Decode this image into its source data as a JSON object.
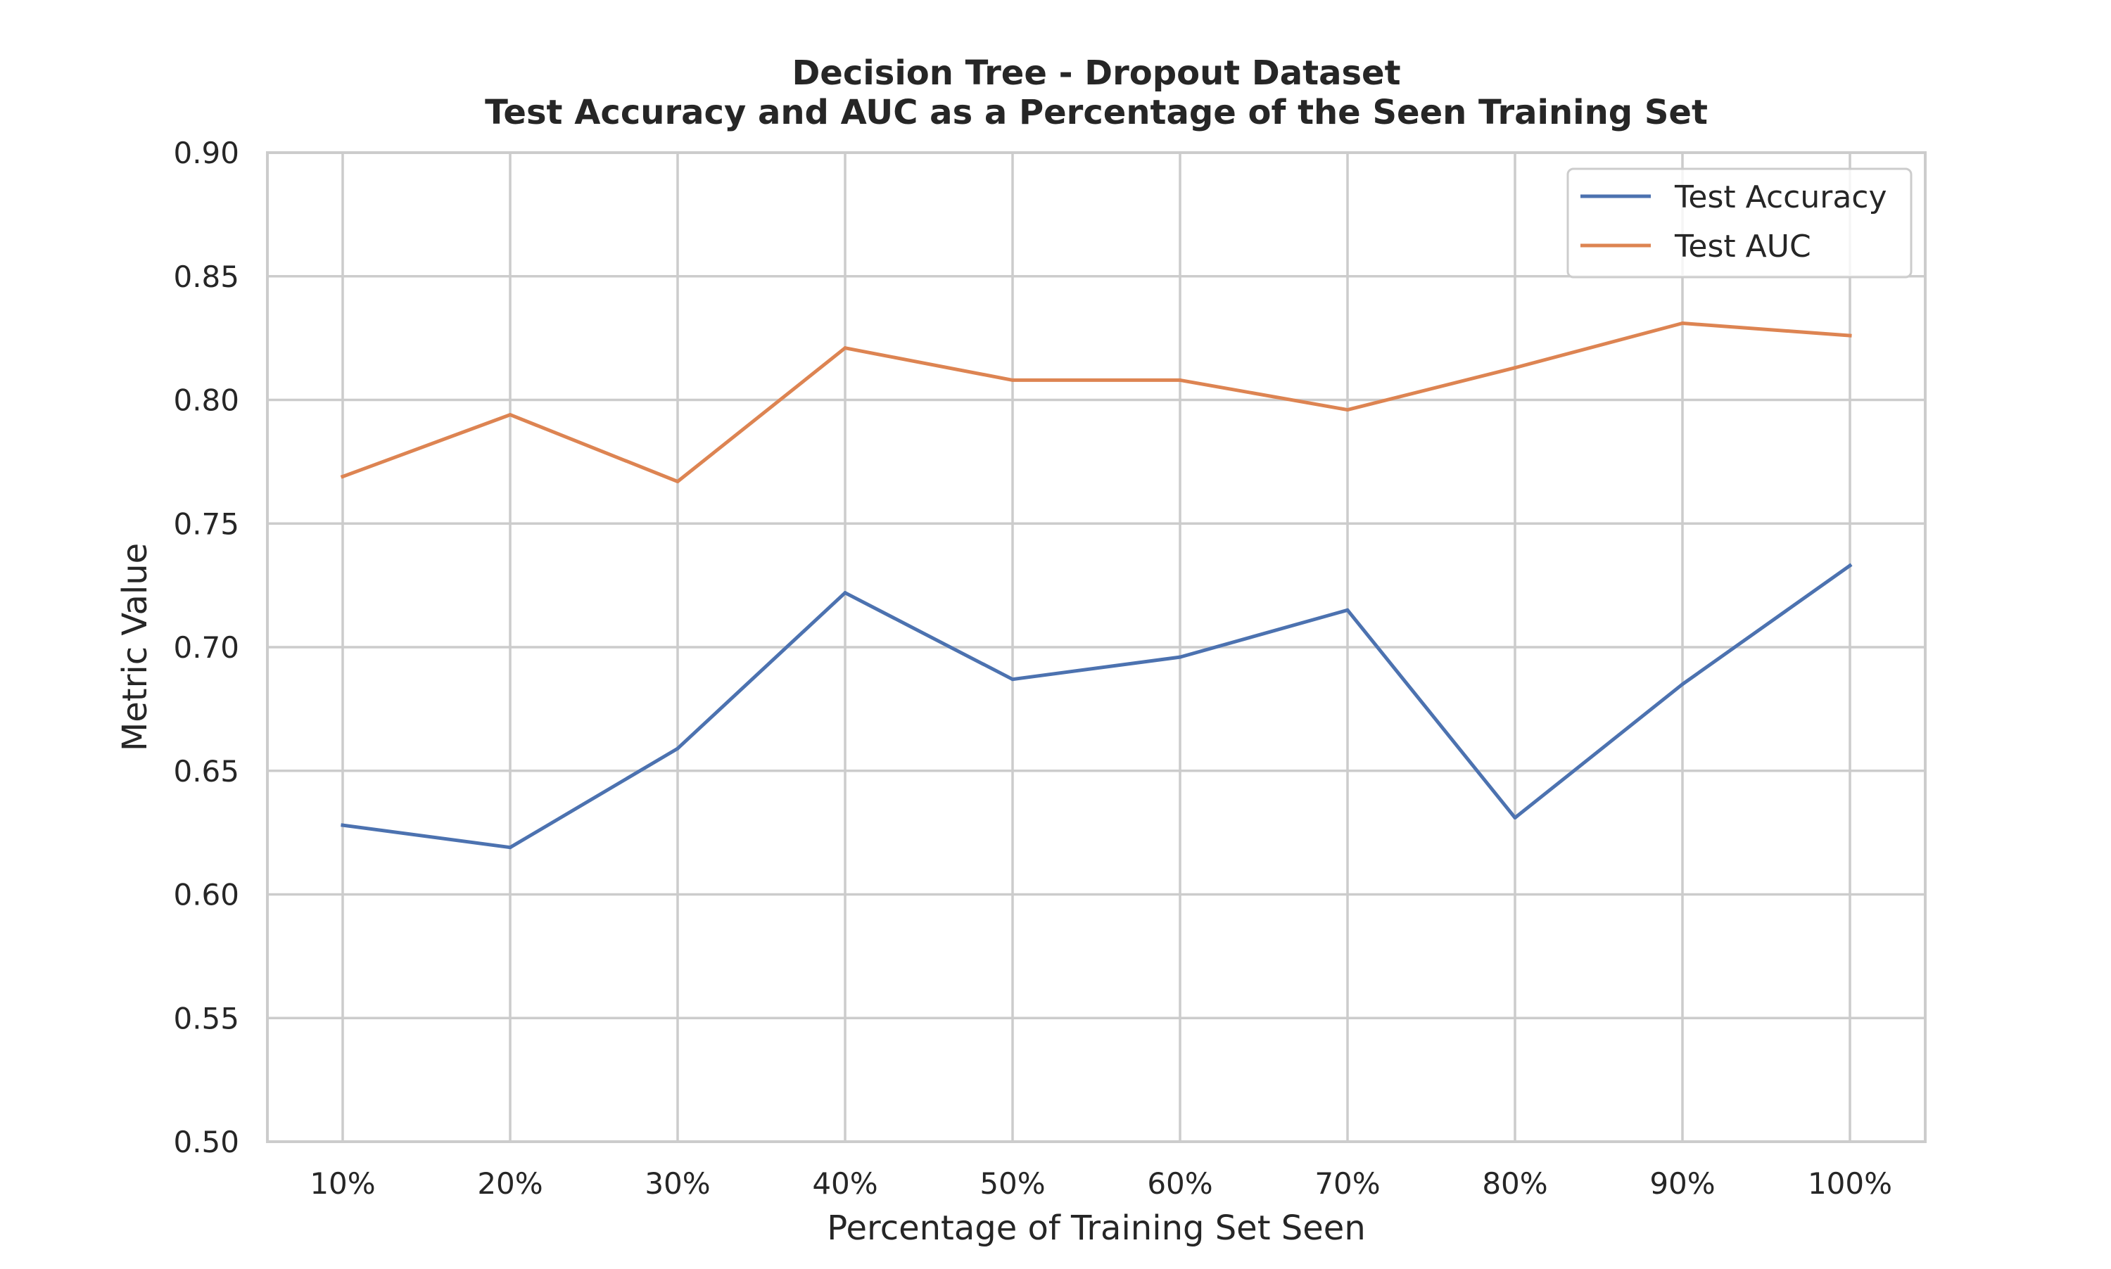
{
  "chart_data": {
    "type": "line",
    "title": "Decision Tree - Dropout Dataset",
    "subtitle": "Test Accuracy and AUC as a Percentage of the Seen Training Set",
    "xlabel": "Percentage of Training Set Seen",
    "ylabel": "Metric Value",
    "categories": [
      "10%",
      "20%",
      "30%",
      "40%",
      "50%",
      "60%",
      "70%",
      "80%",
      "90%",
      "100%"
    ],
    "ylim": [
      0.5,
      0.9
    ],
    "yticks": [
      "0.50",
      "0.55",
      "0.60",
      "0.65",
      "0.70",
      "0.75",
      "0.80",
      "0.85",
      "0.90"
    ],
    "grid": true,
    "legend_position": "top-right",
    "series": [
      {
        "name": "Test Accuracy",
        "color": "#4c72b0",
        "values": [
          0.628,
          0.619,
          0.659,
          0.722,
          0.687,
          0.696,
          0.715,
          0.631,
          0.685,
          0.733
        ]
      },
      {
        "name": "Test AUC",
        "color": "#dd8452",
        "values": [
          0.769,
          0.794,
          0.767,
          0.821,
          0.808,
          0.808,
          0.796,
          0.813,
          0.831,
          0.826
        ]
      }
    ]
  }
}
